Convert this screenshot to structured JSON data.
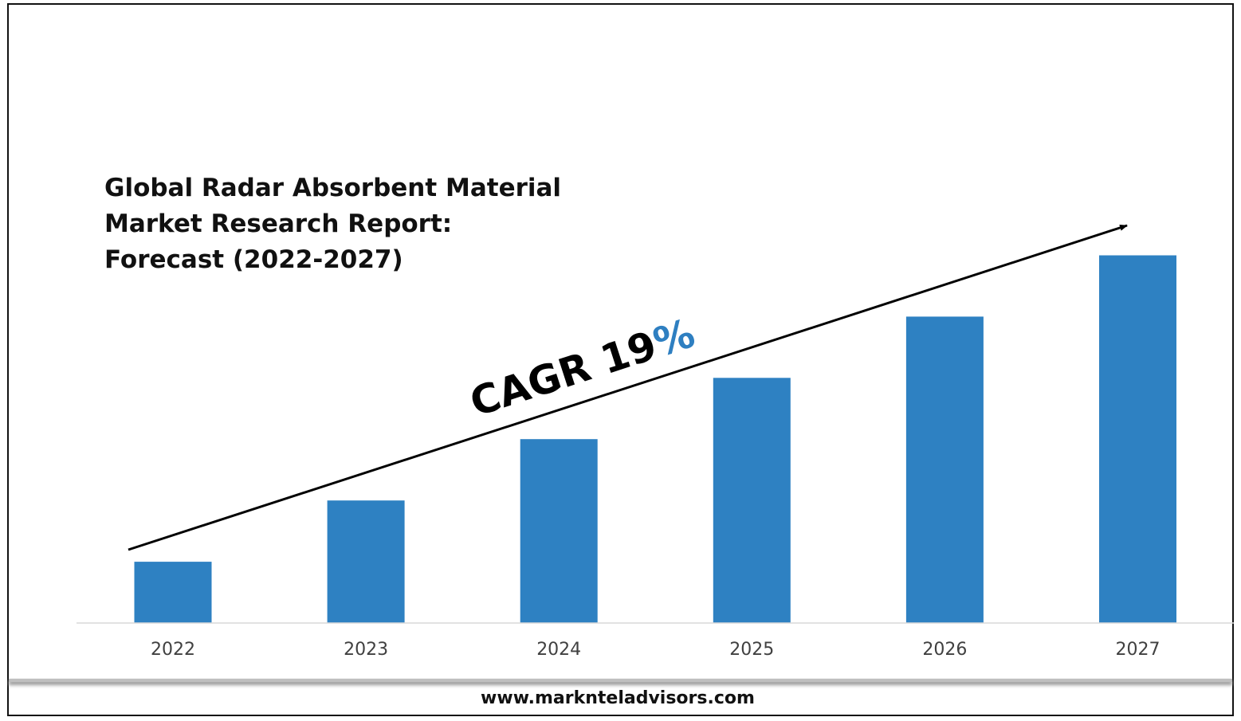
{
  "chart_data": {
    "type": "bar",
    "title": "Global Radar Absorbent Material Market Research Report: Forecast (2022-2027)",
    "title_lines": [
      "Global Radar Absorbent Material",
      "Market Research Report:",
      "Forecast (2022-2027)"
    ],
    "categories": [
      "2022",
      "2023",
      "2024",
      "2025",
      "2026",
      "2027"
    ],
    "values": [
      1.0,
      2.0,
      3.0,
      4.0,
      5.0,
      6.0
    ],
    "ylim": [
      0,
      6.5
    ],
    "xlabel": "",
    "ylabel": "",
    "grid": false,
    "bar_color": "#2e81c2",
    "annotation": {
      "prefix": "CAGR 19",
      "suffix": "%",
      "suffix_color": "#2e7fc1"
    }
  },
  "footer": {
    "url": "www.marknteladvisors.com"
  }
}
